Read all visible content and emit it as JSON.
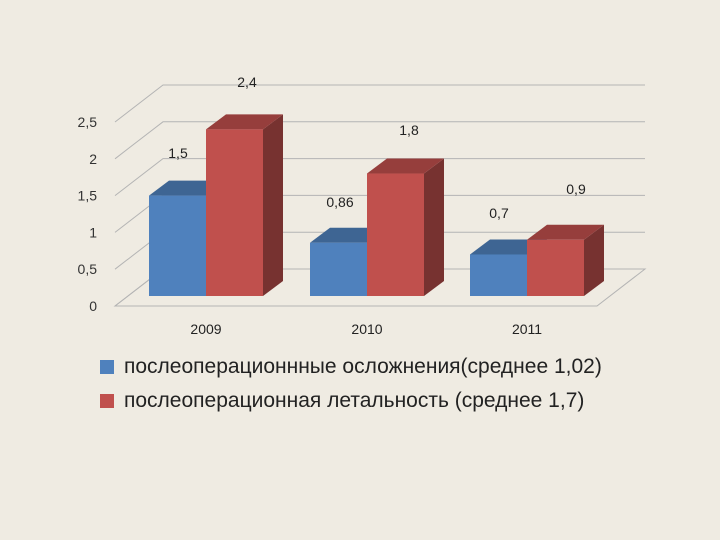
{
  "chart_data": {
    "type": "bar",
    "categories": [
      "2009",
      "2010",
      "2011"
    ],
    "series": [
      {
        "name": "послеоперационнные осложнения(среднее 1,02)",
        "values": [
          1.5,
          0.86,
          0.7
        ],
        "labels": [
          "1,5",
          "0,86",
          "0,7"
        ],
        "color": "#4f81bd"
      },
      {
        "name": "послеоперационная летальность (среднее 1,7)",
        "values": [
          2.4,
          1.8,
          0.9
        ],
        "labels": [
          "2,4",
          "1,8",
          "0,9"
        ],
        "color": "#c0504d"
      }
    ],
    "yticks": [
      "0",
      "0,5",
      "1",
      "1,5",
      "2",
      "2,5"
    ],
    "ylim": [
      0,
      2.5
    ],
    "grid": true,
    "legend": "bottom",
    "style": "3d-clustered-column"
  }
}
